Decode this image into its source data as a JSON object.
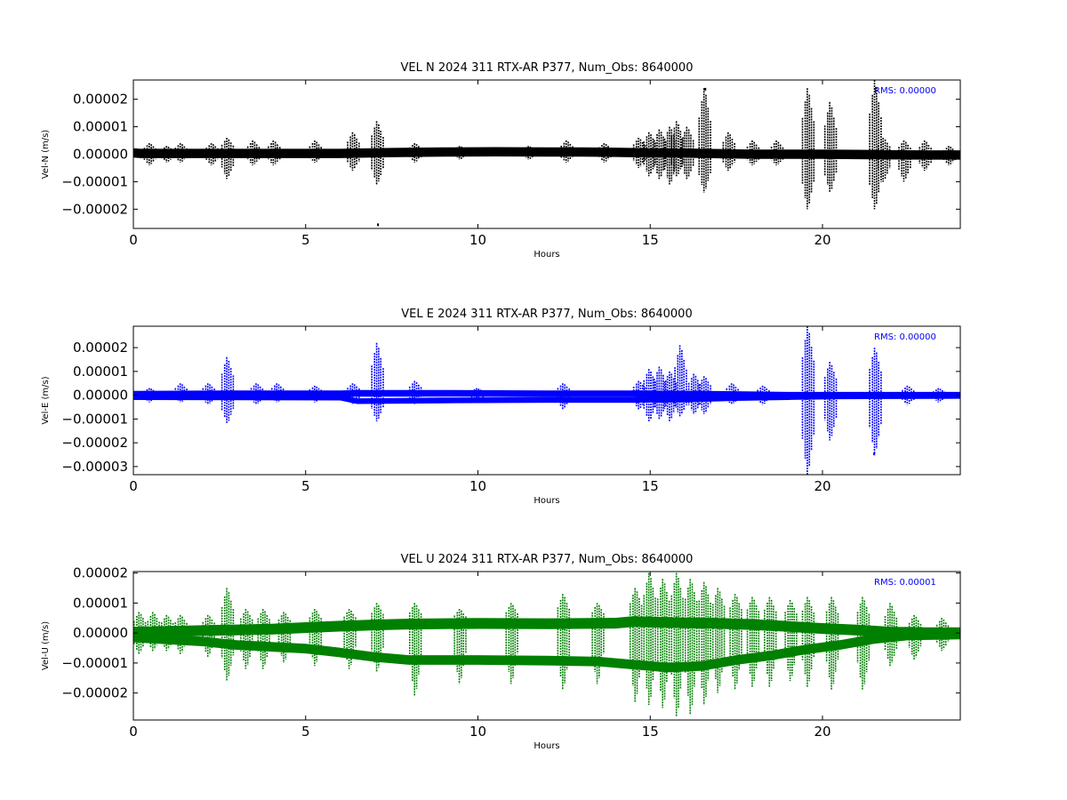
{
  "chart_data": [
    {
      "type": "scatter",
      "title": "VEL N 2024 311 RTX-AR  P377, Num_Obs: 8640000",
      "xlabel": "Hours",
      "ylabel": "Vel-N (m/s)",
      "xlim": [
        0,
        24
      ],
      "ylim": [
        -2.7e-05,
        2.7e-05
      ],
      "xticks": [
        0,
        5,
        10,
        15,
        20
      ],
      "xtick_labels": [
        "0",
        "5",
        "10",
        "15",
        "20"
      ],
      "yticks": [
        2e-05,
        1e-05,
        0.0,
        -1e-05,
        -2e-05
      ],
      "ytick_labels": [
        "0.00002",
        "0.00001",
        "0.00000",
        "−0.00001",
        "−0.00002"
      ],
      "annotation": "RMS:  0.00000",
      "annotation_color": "#0000ff",
      "color": "#000000",
      "series": [
        {
          "bands": [
            {
              "x": [
                0,
                0.2,
                2.5,
                6,
                7.5,
                9,
                10.5,
                12,
                13,
                14,
                15,
                16,
                17,
                18,
                19,
                20,
                21,
                22,
                23,
                24
              ],
              "y": [
                5e-07,
                3e-07,
                3e-07,
                3e-07,
                6e-07,
                8e-07,
                9e-07,
                8e-07,
                8e-07,
                7e-07,
                5e-07,
                4e-07,
                2e-07,
                0.0,
                0.0,
                0.0,
                -1e-07,
                -2e-07,
                -3e-07,
                -3e-07
              ],
              "half_width": 1.7e-06
            }
          ],
          "spikes": [
            {
              "x": 0.5,
              "min": -4e-06,
              "max": 4e-06
            },
            {
              "x": 1.0,
              "min": -3e-06,
              "max": 3e-06
            },
            {
              "x": 1.4,
              "min": -3e-06,
              "max": 4e-06
            },
            {
              "x": 2.3,
              "min": -4e-06,
              "max": 4e-06
            },
            {
              "x": 2.75,
              "min": -9e-06,
              "max": 6e-06
            },
            {
              "x": 3.5,
              "min": -4e-06,
              "max": 5e-06
            },
            {
              "x": 4.1,
              "min": -4e-06,
              "max": 5e-06
            },
            {
              "x": 5.3,
              "min": -3e-06,
              "max": 5e-06
            },
            {
              "x": 6.4,
              "min": -6e-06,
              "max": 8e-06
            },
            {
              "x": 7.1,
              "min": -1.1e-05,
              "max": 1.2e-05
            },
            {
              "x": 8.2,
              "min": -3e-06,
              "max": 4e-06
            },
            {
              "x": 9.5,
              "min": -2e-06,
              "max": 3e-06
            },
            {
              "x": 11.5,
              "min": -2e-06,
              "max": 3e-06
            },
            {
              "x": 12.6,
              "min": -3e-06,
              "max": 5e-06
            },
            {
              "x": 13.7,
              "min": -3e-06,
              "max": 4e-06
            },
            {
              "x": 14.7,
              "min": -5e-06,
              "max": 6e-06
            },
            {
              "x": 15.0,
              "min": -8e-06,
              "max": 8e-06
            },
            {
              "x": 15.3,
              "min": -9e-06,
              "max": 9e-06
            },
            {
              "x": 15.6,
              "min": -1.1e-05,
              "max": 1e-05
            },
            {
              "x": 15.8,
              "min": -8e-06,
              "max": 1.2e-05
            },
            {
              "x": 16.1,
              "min": -9e-06,
              "max": 1e-05
            },
            {
              "x": 16.6,
              "min": -1.4e-05,
              "max": 2.4e-05
            },
            {
              "x": 17.3,
              "min": -6e-06,
              "max": 8e-06
            },
            {
              "x": 18.0,
              "min": -4e-06,
              "max": 5e-06
            },
            {
              "x": 18.7,
              "min": -4e-06,
              "max": 5e-06
            },
            {
              "x": 19.6,
              "min": -2e-05,
              "max": 2.4e-05
            },
            {
              "x": 20.25,
              "min": -1.4e-05,
              "max": 1.9e-05
            },
            {
              "x": 21.55,
              "min": -2e-05,
              "max": 2.7e-05
            },
            {
              "x": 21.8,
              "min": -1e-05,
              "max": 6e-06
            },
            {
              "x": 22.4,
              "min": -1e-05,
              "max": 5e-06
            },
            {
              "x": 23.0,
              "min": -6e-06,
              "max": 5e-06
            },
            {
              "x": 23.7,
              "min": -4e-06,
              "max": 3e-06
            }
          ],
          "outliers": [
            {
              "x": 7.1,
              "y": -2.55e-05
            },
            {
              "x": 16.6,
              "y": 2.38e-05
            }
          ]
        }
      ]
    },
    {
      "type": "scatter",
      "title": "VEL E 2024 311 RTX-AR  P377, Num_Obs: 8640000",
      "xlabel": "Hours",
      "ylabel": "Vel-E (m/s)",
      "xlim": [
        0,
        24
      ],
      "ylim": [
        -3.34e-05,
        2.9e-05
      ],
      "xticks": [
        0,
        5,
        10,
        15,
        20
      ],
      "xtick_labels": [
        "0",
        "5",
        "10",
        "15",
        "20"
      ],
      "yticks": [
        2e-05,
        1e-05,
        0.0,
        -1e-05,
        -2e-05,
        -3e-05
      ],
      "ytick_labels": [
        "0.00002",
        "0.00001",
        "0.00000",
        "−0.00001",
        "−0.00002",
        "−0.00003"
      ],
      "annotation": "RMS:  0.00000",
      "annotation_color": "#0000ff",
      "color": "#0000ff",
      "series": [
        {
          "bands": [
            {
              "x": [
                0,
                3,
                6,
                6.5,
                9,
                12,
                14.5,
                16,
                17.5,
                19,
                20.5,
                22,
                24
              ],
              "y": [
                4e-07,
                6e-07,
                6e-07,
                8e-07,
                8e-07,
                6e-07,
                6e-07,
                5e-07,
                3e-07,
                0.0,
                0.0,
                0.0,
                0.0
              ],
              "half_width": 1.4e-06
            },
            {
              "x": [
                0,
                3,
                6,
                6.5,
                9,
                12,
                14.5,
                16,
                17.5,
                19,
                20.5,
                22,
                24
              ],
              "y": [
                -8e-07,
                -9e-07,
                -1e-06,
                -2.5e-06,
                -2.2e-06,
                -2e-06,
                -2e-06,
                -1.8e-06,
                -1.2e-06,
                -8e-07,
                -5e-07,
                -4e-07,
                -3e-07
              ],
              "half_width": 1.2e-06
            }
          ],
          "spikes": [
            {
              "x": 0.5,
              "min": -3e-06,
              "max": 3e-06
            },
            {
              "x": 1.4,
              "min": -3e-06,
              "max": 5e-06
            },
            {
              "x": 2.2,
              "min": -4e-06,
              "max": 5e-06
            },
            {
              "x": 2.75,
              "min": -1.2e-05,
              "max": 1.6e-05
            },
            {
              "x": 3.6,
              "min": -4e-06,
              "max": 5e-06
            },
            {
              "x": 4.2,
              "min": -3e-06,
              "max": 5e-06
            },
            {
              "x": 5.3,
              "min": -3e-06,
              "max": 4e-06
            },
            {
              "x": 6.4,
              "min": -4e-06,
              "max": 5e-06
            },
            {
              "x": 7.1,
              "min": -1.1e-05,
              "max": 2.2e-05
            },
            {
              "x": 8.2,
              "min": -4e-06,
              "max": 6e-06
            },
            {
              "x": 10.0,
              "min": -3e-06,
              "max": 3e-06
            },
            {
              "x": 12.5,
              "min": -6e-06,
              "max": 5e-06
            },
            {
              "x": 14.7,
              "min": -6e-06,
              "max": 6e-06
            },
            {
              "x": 15.0,
              "min": -1.1e-05,
              "max": 1.1e-05
            },
            {
              "x": 15.3,
              "min": -1e-05,
              "max": 1.2e-05
            },
            {
              "x": 15.6,
              "min": -1.1e-05,
              "max": 1e-05
            },
            {
              "x": 15.9,
              "min": -9e-06,
              "max": 2.1e-05
            },
            {
              "x": 16.3,
              "min": -8e-06,
              "max": 9e-06
            },
            {
              "x": 16.6,
              "min": -8e-06,
              "max": 8e-06
            },
            {
              "x": 17.4,
              "min": -4e-06,
              "max": 5e-06
            },
            {
              "x": 18.3,
              "min": -4e-06,
              "max": 4e-06
            },
            {
              "x": 19.6,
              "min": -3.34e-05,
              "max": 2.9e-05
            },
            {
              "x": 20.25,
              "min": -1.9e-05,
              "max": 1.4e-05
            },
            {
              "x": 21.55,
              "min": -2.5e-05,
              "max": 2e-05
            },
            {
              "x": 22.5,
              "min": -4e-06,
              "max": 4e-06
            },
            {
              "x": 23.4,
              "min": -3e-06,
              "max": 3e-06
            }
          ],
          "outliers": [
            {
              "x": 21.5,
              "y": -2.45e-05
            }
          ]
        }
      ]
    },
    {
      "type": "scatter",
      "title": "VEL U 2024 311 RTX-AR  P377, Num_Obs: 8640000",
      "xlabel": "Hours",
      "ylabel": "Vel-U (m/s)",
      "xlim": [
        0,
        24
      ],
      "ylim": [
        -2.9e-05,
        2.05e-05
      ],
      "xticks": [
        0,
        5,
        10,
        15,
        20
      ],
      "xtick_labels": [
        "0",
        "5",
        "10",
        "15",
        "20"
      ],
      "yticks": [
        2e-05,
        1e-05,
        0.0,
        -1e-05,
        -2e-05
      ],
      "ytick_labels": [
        "0.00002",
        "0.00001",
        "0.00000",
        "−0.00001",
        "−0.00002"
      ],
      "annotation": "RMS:  0.00001",
      "annotation_color": "#0000ff",
      "color": "#008000",
      "series": [
        {
          "bands": [
            {
              "x": [
                0,
                2,
                4,
                5,
                6,
                7,
                8,
                10,
                12,
                14,
                14.5,
                15.5,
                17,
                18,
                19,
                20,
                21,
                22,
                23,
                24
              ],
              "y": [
                3e-07,
                8e-07,
                1.3e-06,
                1.8e-06,
                2.3e-06,
                2.7e-06,
                3e-06,
                3.2e-06,
                3.1e-06,
                3.3e-06,
                3.8e-06,
                3.5e-06,
                3.2e-06,
                2.8e-06,
                2.2e-06,
                1.5e-06,
                1e-06,
                3e-07,
                1e-07,
                1e-07
              ],
              "half_width": 1.8e-06
            },
            {
              "x": [
                0,
                2,
                3,
                5,
                6,
                7,
                8,
                10,
                12,
                13.5,
                14.5,
                15.5,
                16.5,
                17.5,
                18.5,
                19.5,
                20.5,
                21.5,
                22.5,
                24
              ],
              "y": [
                -1.5e-06,
                -2.8e-06,
                -4e-06,
                -5.2e-06,
                -6.5e-06,
                -8e-06,
                -9e-06,
                -9e-06,
                -9.2e-06,
                -9.5e-06,
                -1.05e-05,
                -1.15e-05,
                -1.1e-05,
                -9e-06,
                -7.5e-06,
                -5.5e-06,
                -4e-06,
                -2e-06,
                -8e-07,
                -5e-07
              ],
              "half_width": 1.6e-06
            }
          ],
          "spikes": [
            {
              "x": 0.2,
              "min": -7e-06,
              "max": 7e-06
            },
            {
              "x": 0.6,
              "min": -6e-06,
              "max": 7e-06
            },
            {
              "x": 1.0,
              "min": -6e-06,
              "max": 6e-06
            },
            {
              "x": 1.4,
              "min": -7e-06,
              "max": 6e-06
            },
            {
              "x": 2.2,
              "min": -8e-06,
              "max": 6e-06
            },
            {
              "x": 2.75,
              "min": -1.6e-05,
              "max": 1.5e-05
            },
            {
              "x": 3.3,
              "min": -1.2e-05,
              "max": 8e-06
            },
            {
              "x": 3.8,
              "min": -1.2e-05,
              "max": 8e-06
            },
            {
              "x": 4.4,
              "min": -1e-05,
              "max": 7e-06
            },
            {
              "x": 5.3,
              "min": -1.1e-05,
              "max": 8e-06
            },
            {
              "x": 6.3,
              "min": -1.2e-05,
              "max": 8e-06
            },
            {
              "x": 7.1,
              "min": -1.3e-05,
              "max": 1e-05
            },
            {
              "x": 8.2,
              "min": -2.1e-05,
              "max": 1e-05
            },
            {
              "x": 9.5,
              "min": -1.7e-05,
              "max": 8e-06
            },
            {
              "x": 11.0,
              "min": -1.7e-05,
              "max": 1e-05
            },
            {
              "x": 12.5,
              "min": -1.9e-05,
              "max": 1.3e-05
            },
            {
              "x": 13.5,
              "min": -1.7e-05,
              "max": 1e-05
            },
            {
              "x": 14.6,
              "min": -2.3e-05,
              "max": 1.5e-05
            },
            {
              "x": 15.0,
              "min": -2.4e-05,
              "max": 2e-05
            },
            {
              "x": 15.4,
              "min": -2.5e-05,
              "max": 1.8e-05
            },
            {
              "x": 15.8,
              "min": -2.8e-05,
              "max": 2e-05
            },
            {
              "x": 16.2,
              "min": -2.7e-05,
              "max": 1.8e-05
            },
            {
              "x": 16.6,
              "min": -2.4e-05,
              "max": 1.7e-05
            },
            {
              "x": 17.0,
              "min": -2e-05,
              "max": 1.5e-05
            },
            {
              "x": 17.5,
              "min": -1.9e-05,
              "max": 1.3e-05
            },
            {
              "x": 18.0,
              "min": -1.8e-05,
              "max": 1.2e-05
            },
            {
              "x": 18.5,
              "min": -1.8e-05,
              "max": 1.2e-05
            },
            {
              "x": 19.1,
              "min": -1.6e-05,
              "max": 1.1e-05
            },
            {
              "x": 19.6,
              "min": -1.8e-05,
              "max": 1.2e-05
            },
            {
              "x": 20.3,
              "min": -1.9e-05,
              "max": 1.2e-05
            },
            {
              "x": 21.2,
              "min": -1.9e-05,
              "max": 1.2e-05
            },
            {
              "x": 22.0,
              "min": -1.1e-05,
              "max": 1e-05
            },
            {
              "x": 22.7,
              "min": -9e-06,
              "max": 6e-06
            },
            {
              "x": 23.5,
              "min": -6e-06,
              "max": 5e-06
            }
          ],
          "outliers": []
        }
      ]
    }
  ]
}
